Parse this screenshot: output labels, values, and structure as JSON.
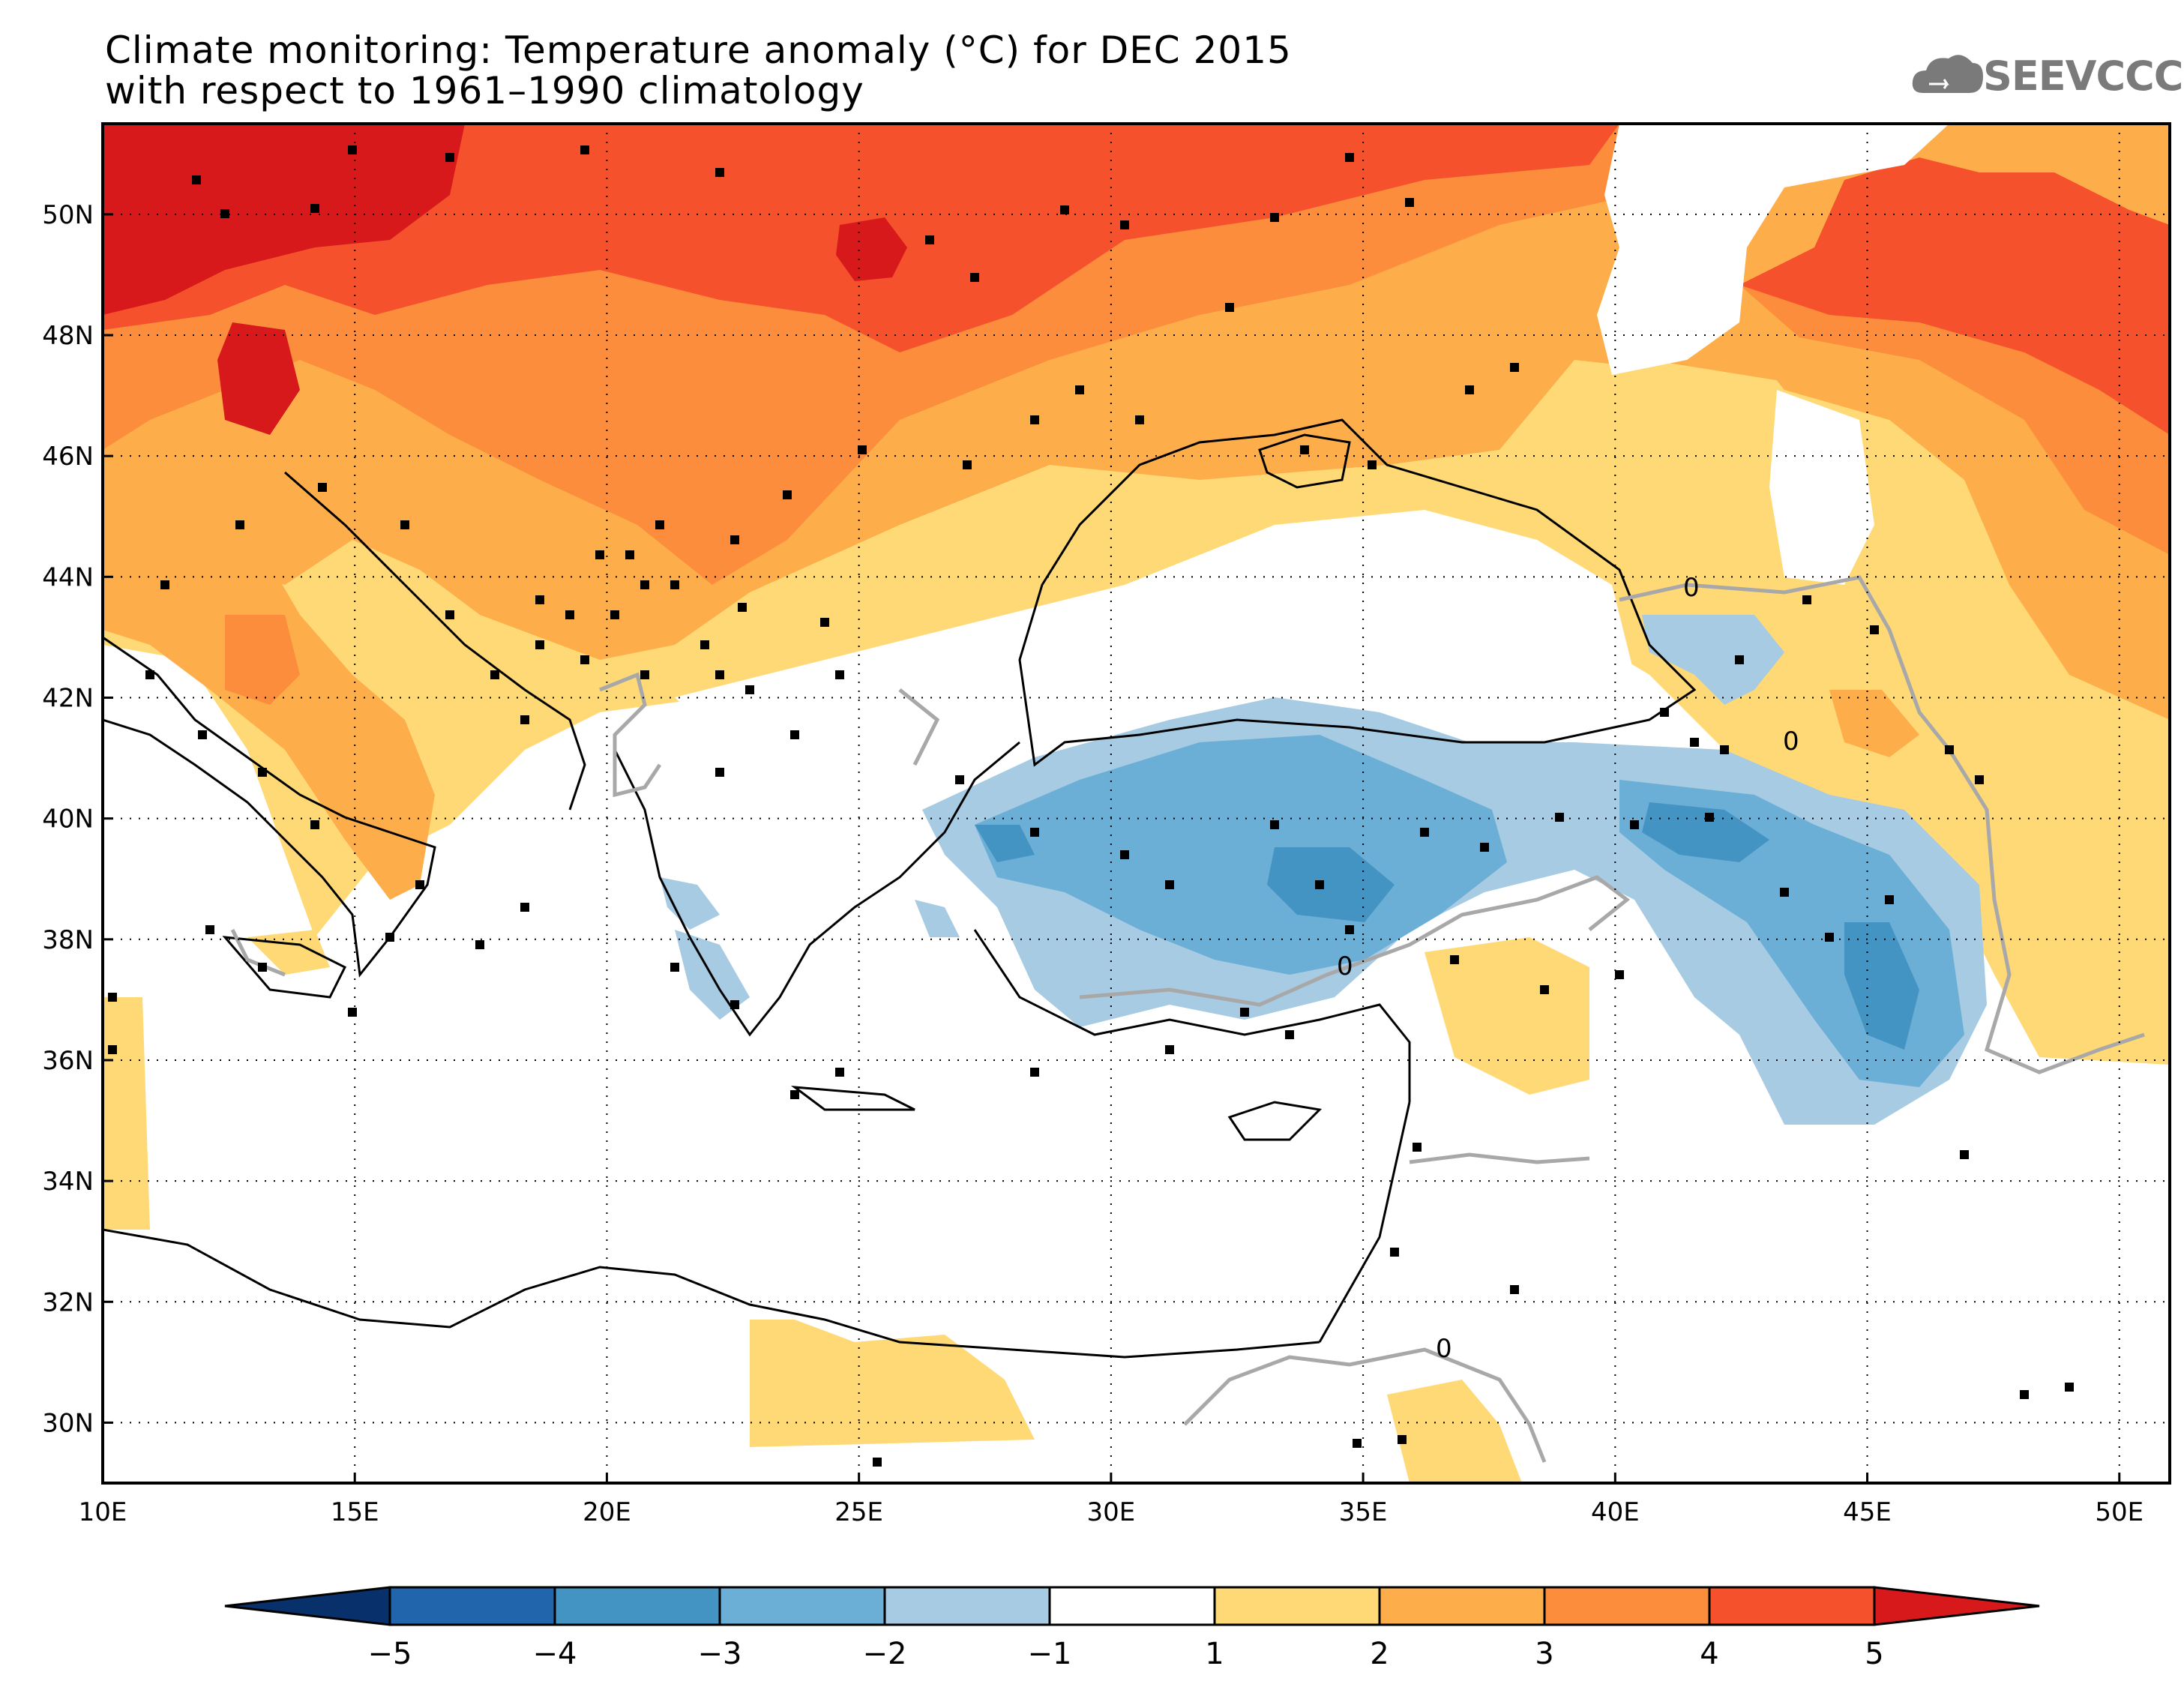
{
  "title": {
    "line1": "Climate monitoring: Temperature anomaly (°C) for DEC 2015",
    "line2": "with respect to 1961–1990 climatology"
  },
  "logo": {
    "text": "SEEVCCC",
    "icon": "cloud-icon"
  },
  "map": {
    "lon_range": [
      10,
      51
    ],
    "lat_range": [
      29,
      51.5
    ],
    "x_ticks": [
      "10E",
      "15E",
      "20E",
      "25E",
      "30E",
      "35E",
      "40E",
      "45E",
      "50E"
    ],
    "y_ticks": [
      "30N",
      "32N",
      "34N",
      "36N",
      "38N",
      "40N",
      "42N",
      "44N",
      "46N",
      "48N",
      "50N"
    ],
    "contour_label": "0",
    "grid": true
  },
  "colorbar": {
    "labels": [
      "−5",
      "−4",
      "−3",
      "−2",
      "−1",
      "1",
      "2",
      "3",
      "4",
      "5"
    ],
    "colors": [
      "#08306b",
      "#2166ac",
      "#4393c3",
      "#6baed6",
      "#a6cbe3",
      "#ffffff",
      "#fed976",
      "#fdae4b",
      "#fc8d3c",
      "#f4512c",
      "#d7191c"
    ]
  }
}
